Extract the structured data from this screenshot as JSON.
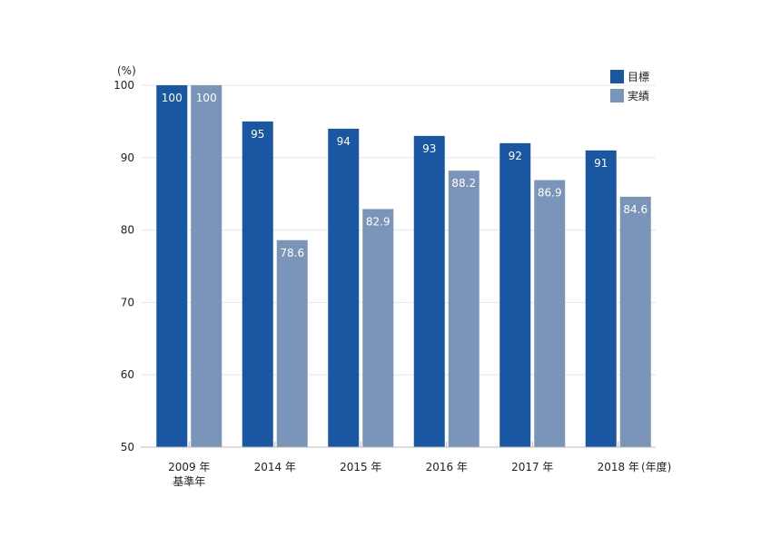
{
  "chart_data": {
    "type": "bar",
    "yunit": "(%)",
    "xunit": "(年度)",
    "categories": [
      {
        "line1": "2009 年",
        "line2": "基準年"
      },
      {
        "line1": "2014 年",
        "line2": ""
      },
      {
        "line1": "2015 年",
        "line2": ""
      },
      {
        "line1": "2016 年",
        "line2": ""
      },
      {
        "line1": "2017 年",
        "line2": ""
      },
      {
        "line1": "2018 年",
        "line2": ""
      }
    ],
    "series": [
      {
        "name": "目標",
        "color": "#1a57a2",
        "values": [
          100,
          95,
          94,
          93,
          92,
          91
        ],
        "labels": [
          "100",
          "95",
          "94",
          "93",
          "92",
          "91"
        ]
      },
      {
        "name": "実績",
        "color": "#7b94ba",
        "values": [
          100,
          78.6,
          82.9,
          88.2,
          86.9,
          84.6
        ],
        "labels": [
          "100",
          "78.6",
          "82.9",
          "88.2",
          "86.9",
          "84.6"
        ]
      }
    ],
    "ylim": [
      50,
      100
    ],
    "yticks": [
      "100",
      "90",
      "80",
      "70",
      "60",
      "50"
    ],
    "grid": true,
    "legend": "top-right"
  }
}
